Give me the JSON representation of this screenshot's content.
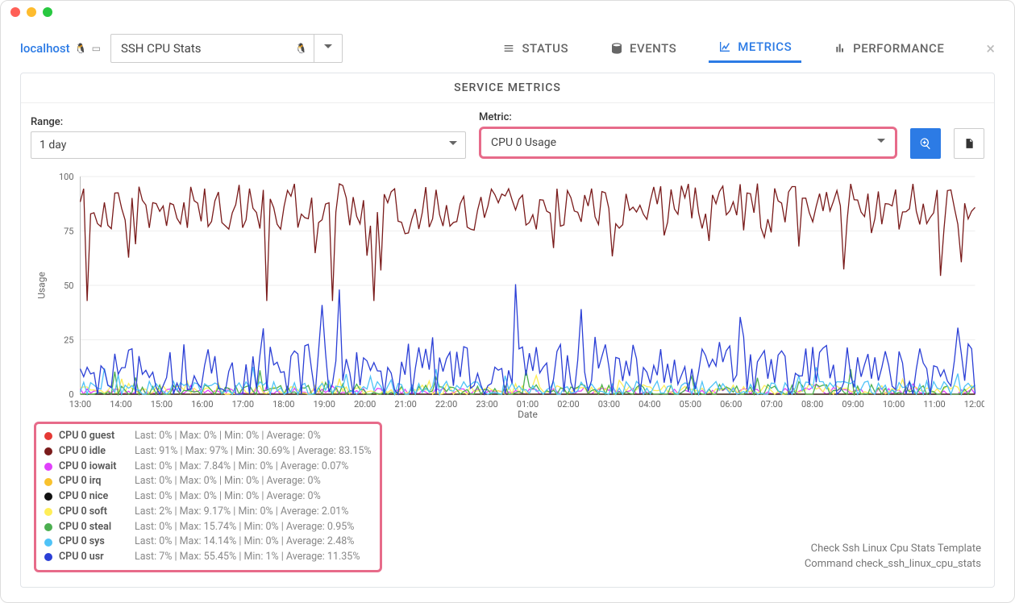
{
  "host": "localhost",
  "service_selector": "SSH CPU Stats",
  "tabs": {
    "status": "STATUS",
    "events": "EVENTS",
    "metrics": "METRICS",
    "performance": "PERFORMANCE"
  },
  "active_tab": "metrics",
  "panel_title": "SERVICE METRICS",
  "range_label": "Range:",
  "range_value": "1 day",
  "metric_label": "Metric:",
  "metric_value": "CPU 0 Usage",
  "chart": {
    "type": "line",
    "ylabel": "Usage",
    "xlabel": "Date",
    "ylim": [
      0,
      100
    ],
    "ytick_step": 25,
    "x_ticks": [
      "13:00",
      "14:00",
      "15:00",
      "16:00",
      "17:00",
      "18:00",
      "19:00",
      "20:00",
      "21:00",
      "22:00",
      "23:00",
      "01:00",
      "02:00",
      "03:00",
      "04:00",
      "05:00",
      "06:00",
      "07:00",
      "08:00",
      "09:00",
      "10:00",
      "11:00",
      "12:00"
    ],
    "grid_color": "#eeeeee",
    "background_color": "#ffffff",
    "series": [
      {
        "name": "CPU 0 guest",
        "color": "#e53935",
        "last": "0%",
        "max": "0%",
        "min": "0%",
        "avg": "0%",
        "amplitude": 0,
        "base": 0,
        "freq": 1
      },
      {
        "name": "CPU 0 idle",
        "color": "#7a1b1b",
        "last": "91%",
        "max": "97%",
        "min": "30.69%",
        "avg": "83.15%",
        "amplitude": 18,
        "base": 86,
        "freq": 2.2
      },
      {
        "name": "CPU 0 iowait",
        "color": "#e040fb",
        "last": "0%",
        "max": "7.84%",
        "min": "0%",
        "avg": "0.07%",
        "amplitude": 3,
        "base": 1,
        "freq": 3
      },
      {
        "name": "CPU 0 irq",
        "color": "#f9c22e",
        "last": "0%",
        "max": "0%",
        "min": "0%",
        "avg": "0%",
        "amplitude": 0,
        "base": 0,
        "freq": 1
      },
      {
        "name": "CPU 0 nice",
        "color": "#111111",
        "last": "0%",
        "max": "0%",
        "min": "0%",
        "avg": "0%",
        "amplitude": 0,
        "base": 0,
        "freq": 1
      },
      {
        "name": "CPU 0 soft",
        "color": "#ffee58",
        "last": "2%",
        "max": "9.17%",
        "min": "0%",
        "avg": "2.01%",
        "amplitude": 4,
        "base": 2,
        "freq": 2.7
      },
      {
        "name": "CPU 0 steal",
        "color": "#4caf50",
        "last": "0%",
        "max": "15.74%",
        "min": "0%",
        "avg": "0.95%",
        "amplitude": 6,
        "base": 1,
        "freq": 3.3
      },
      {
        "name": "CPU 0 sys",
        "color": "#4fc3f7",
        "last": "0%",
        "max": "14.14%",
        "min": "0%",
        "avg": "2.48%",
        "amplitude": 6,
        "base": 2.5,
        "freq": 2.1
      },
      {
        "name": "CPU 0 usr",
        "color": "#2b3fd6",
        "last": "7%",
        "max": "55.45%",
        "min": "1%",
        "avg": "11.35%",
        "amplitude": 22,
        "base": 10,
        "freq": 2.9
      }
    ]
  },
  "footer": {
    "template_label": "Check Ssh Linux Cpu Stats Template",
    "command_label": "Command check_ssh_linux_cpu_stats"
  },
  "colors": {
    "accent": "#2c7be5",
    "highlight_border": "#e76b8a"
  }
}
